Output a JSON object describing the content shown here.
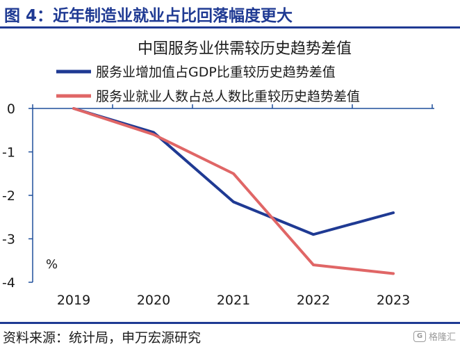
{
  "figure": {
    "title": "图 4：近年制造业就业占比回落幅度更大",
    "source": "资料来源：统计局，申万宏源研究",
    "watermark": "格隆汇",
    "watermark_logo_text": "G"
  },
  "colors": {
    "brand": "#1f3a93",
    "series_gdp": "#1f3a93",
    "series_employment": "#e06666",
    "axis": "#1f4f9b",
    "text": "#1a1a1a"
  },
  "chart_data": {
    "type": "line",
    "title": "中国服务业供需较历史趋势差值",
    "x": [
      "2019",
      "2020",
      "2021",
      "2022",
      "2023"
    ],
    "series": [
      {
        "name": "服务业增加值占GDP比重较历史趋势差值",
        "values": [
          0.0,
          -0.55,
          -2.15,
          -2.9,
          -2.4
        ]
      },
      {
        "name": "服务业就业人数占总人数比重较历史趋势差值",
        "values": [
          0.0,
          -0.6,
          -1.5,
          -3.6,
          -3.8
        ]
      }
    ],
    "ylim": [
      -4,
      0
    ],
    "yticks": [
      "0",
      "-1",
      "-2",
      "-3",
      "-4"
    ],
    "yunit": "%",
    "xlabel": "",
    "ylabel": "",
    "grid": false,
    "legend_position": "top"
  }
}
